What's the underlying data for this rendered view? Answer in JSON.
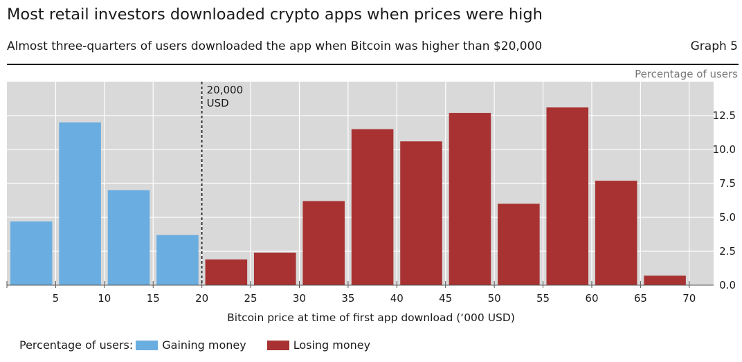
{
  "header": {
    "title": "Most retail investors downloaded crypto apps when prices were high",
    "subtitle": "Almost three-quarters of users downloaded the app when Bitcoin was higher than $20,000",
    "graph_label": "Graph 5"
  },
  "legend": {
    "prefix": "Percentage of users:",
    "items": [
      {
        "label": "Gaining money",
        "color": "#6aade0"
      },
      {
        "label": "Losing money",
        "color": "#a83232"
      }
    ]
  },
  "chart_data": {
    "type": "bar",
    "xlabel": "Bitcoin price at time of first app download (‘000 USD)",
    "ylabel": "Percentage of users",
    "xlim": [
      0,
      72.5
    ],
    "ylim": [
      0,
      15
    ],
    "x_ticks": [
      5,
      10,
      15,
      20,
      25,
      30,
      35,
      40,
      45,
      50,
      55,
      60,
      65,
      70
    ],
    "y_ticks": [
      0.0,
      2.5,
      5.0,
      7.5,
      10.0,
      12.5
    ],
    "y_tick_labels": [
      "0.0",
      "2.5",
      "5.0",
      "7.5",
      "10.0",
      "12.5"
    ],
    "grid": true,
    "bin_width": 5,
    "bins": [
      {
        "start": 0,
        "end": 5,
        "value": 4.7
      },
      {
        "start": 5,
        "end": 10,
        "value": 12.0
      },
      {
        "start": 10,
        "end": 15,
        "value": 7.0
      },
      {
        "start": 15,
        "end": 20,
        "value": 3.7
      },
      {
        "start": 20,
        "end": 25,
        "value": 1.9
      },
      {
        "start": 25,
        "end": 30,
        "value": 2.4
      },
      {
        "start": 30,
        "end": 35,
        "value": 6.2
      },
      {
        "start": 35,
        "end": 40,
        "value": 11.5
      },
      {
        "start": 40,
        "end": 45,
        "value": 10.6
      },
      {
        "start": 45,
        "end": 50,
        "value": 12.7
      },
      {
        "start": 50,
        "end": 55,
        "value": 6.0
      },
      {
        "start": 55,
        "end": 60,
        "value": 13.1
      },
      {
        "start": 60,
        "end": 65,
        "value": 7.7
      },
      {
        "start": 65,
        "end": 70,
        "value": 0.7
      }
    ],
    "series": [
      {
        "name": "Gaining money",
        "color": "#6aade0",
        "bins": [
          0,
          1,
          2,
          3
        ]
      },
      {
        "name": "Losing money",
        "color": "#a83232",
        "bins": [
          4,
          5,
          6,
          7,
          8,
          9,
          10,
          11,
          12,
          13
        ]
      }
    ],
    "reference_line": {
      "x": 20,
      "label_lines": [
        "20,000",
        "USD"
      ]
    }
  }
}
